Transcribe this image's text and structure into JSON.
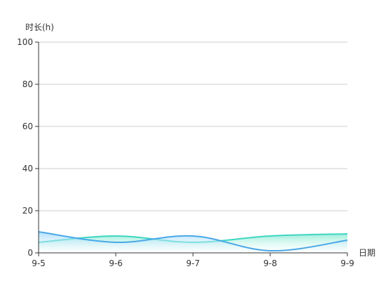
{
  "chart_data": {
    "type": "area",
    "ylabel": "时长(h)",
    "xlabel": "日期",
    "categories": [
      "9-5",
      "9-6",
      "9-7",
      "9-8",
      "9-9"
    ],
    "ylim": [
      0,
      100
    ],
    "yticks": [
      "0",
      "20",
      "40",
      "60",
      "80",
      "100"
    ],
    "grid": true,
    "smooth": true,
    "series": [
      {
        "color": "#3fd6c2",
        "fill": "#bff3e6",
        "values": [
          5,
          8,
          5,
          8,
          9
        ]
      },
      {
        "color": "#4aa8e8",
        "fill": "#cfeafc",
        "values": [
          10,
          5,
          8,
          1,
          6
        ]
      }
    ]
  }
}
